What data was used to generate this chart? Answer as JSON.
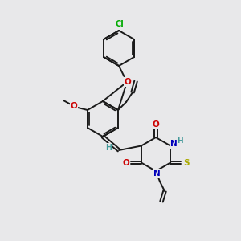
{
  "background_color": "#e8e8ea",
  "bond_color": "#1a1a1a",
  "atom_colors": {
    "O": "#cc0000",
    "N": "#0000bb",
    "S": "#aaaa00",
    "Cl": "#00aa00",
    "H": "#449999"
  },
  "figsize": [
    3.0,
    3.0
  ],
  "dpi": 100
}
